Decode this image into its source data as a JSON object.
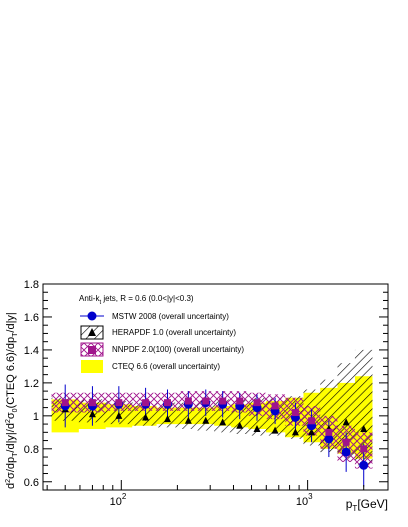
{
  "chart_data": {
    "type": "scatter",
    "title": "",
    "xlabel": "p_T[GeV]",
    "ylabel": "d²σ/dp_T/d|y|/d²σ₀(CTEQ 6.6)/dp_T/d|y|",
    "x_scale": "log",
    "xlim": [
      38,
      2700
    ],
    "ylim": [
      0.55,
      1.8
    ],
    "y_ticks": [
      0.6,
      0.8,
      1.0,
      1.2,
      1.4,
      1.6,
      1.8
    ],
    "y_tick_labels": [
      "0.6",
      "0.8",
      "1",
      "1.2",
      "1.4",
      "1.6",
      "1.8"
    ],
    "x_tick_labels": [
      {
        "value": 100,
        "base": "10",
        "exp": "2"
      },
      {
        "value": 1000,
        "base": "10",
        "exp": "3"
      }
    ],
    "grid": false,
    "legend_position": "top-left",
    "annotation": {
      "pre": "Anti-k",
      "sub": "t",
      "post": " jets, R = 0.6 (0.0<|y|<0.3)"
    },
    "pt_bins": [
      50,
      70,
      97,
      135,
      177,
      229,
      284,
      350,
      432,
      535,
      669,
      860,
      1050,
      1300,
      1610,
      2000
    ],
    "series": [
      {
        "name": "MSTW 2008 (overall uncertainty)",
        "color": "#0000cc",
        "marker": "circle",
        "values": [
          1.06,
          1.06,
          1.07,
          1.07,
          1.07,
          1.07,
          1.08,
          1.07,
          1.06,
          1.05,
          1.03,
          0.99,
          0.94,
          0.86,
          0.78,
          0.7
        ],
        "err": [
          0.13,
          0.12,
          0.11,
          0.1,
          0.09,
          0.08,
          0.08,
          0.08,
          0.08,
          0.08,
          0.08,
          0.09,
          0.1,
          0.11,
          0.12,
          0.13
        ]
      },
      {
        "name": "HERAPDF 1.0 (overall uncertainty)",
        "color": "#000000",
        "marker": "triangle",
        "fill": "hatch-diagonal",
        "values": [
          1.04,
          1.01,
          1.0,
          0.99,
          0.98,
          0.97,
          0.97,
          0.96,
          0.94,
          0.92,
          0.91,
          0.9,
          0.9,
          0.92,
          0.96,
          0.92
        ],
        "lower": [
          0.97,
          0.96,
          0.95,
          0.94,
          0.93,
          0.92,
          0.91,
          0.9,
          0.89,
          0.88,
          0.88,
          0.86,
          0.82,
          0.78,
          0.74,
          0.7
        ],
        "upper": [
          1.11,
          1.1,
          1.09,
          1.08,
          1.08,
          1.08,
          1.09,
          1.1,
          1.1,
          1.11,
          1.11,
          1.12,
          1.16,
          1.22,
          1.32,
          1.4
        ]
      },
      {
        "name": "NNPDF 2.0(100) (overall uncertainty)",
        "color": "#a0148c",
        "marker": "square",
        "fill": "hatch-cross",
        "values": [
          1.08,
          1.08,
          1.08,
          1.08,
          1.08,
          1.09,
          1.09,
          1.09,
          1.09,
          1.08,
          1.06,
          1.02,
          0.97,
          0.9,
          0.84,
          0.8
        ],
        "lower": [
          1.02,
          1.02,
          1.03,
          1.03,
          1.03,
          1.03,
          1.03,
          1.03,
          1.02,
          1.0,
          0.98,
          0.94,
          0.88,
          0.8,
          0.72,
          0.68
        ],
        "upper": [
          1.14,
          1.14,
          1.14,
          1.14,
          1.14,
          1.15,
          1.15,
          1.15,
          1.15,
          1.14,
          1.13,
          1.11,
          1.06,
          1.0,
          0.94,
          0.9
        ]
      },
      {
        "name": "CTEQ 6.6 (overall uncertainty)",
        "color": "#ffff00",
        "fill": "solid",
        "values": [
          1,
          1,
          1,
          1,
          1,
          1,
          1,
          1,
          1,
          1,
          1,
          1,
          1,
          1,
          1,
          1
        ],
        "lower": [
          0.9,
          0.92,
          0.93,
          0.94,
          0.95,
          0.95,
          0.95,
          0.94,
          0.93,
          0.92,
          0.9,
          0.87,
          0.84,
          0.8,
          0.77,
          0.74
        ],
        "upper": [
          1.1,
          1.08,
          1.07,
          1.06,
          1.05,
          1.05,
          1.05,
          1.06,
          1.07,
          1.08,
          1.09,
          1.11,
          1.14,
          1.17,
          1.2,
          1.24
        ]
      }
    ]
  }
}
